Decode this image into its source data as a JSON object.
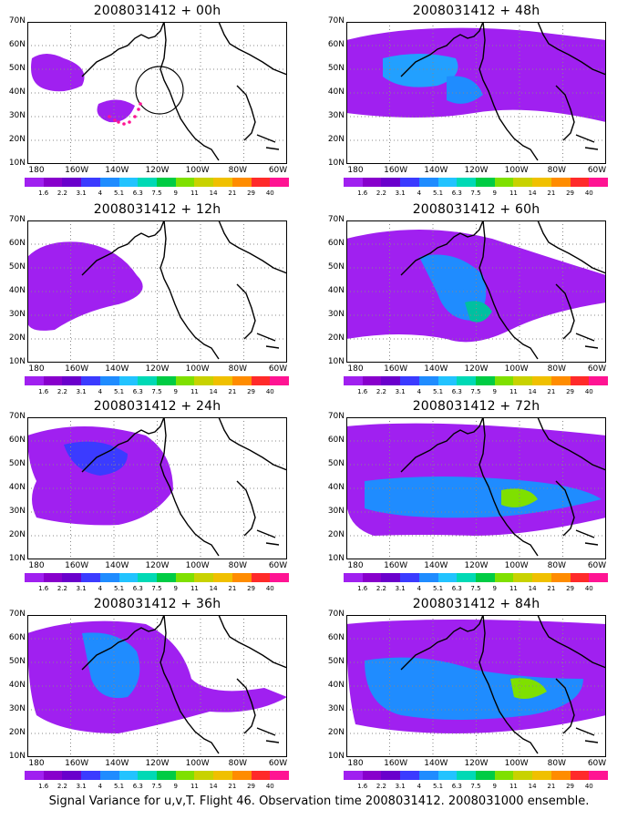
{
  "panels": [
    {
      "title": "2008031412 + 00h"
    },
    {
      "title": "2008031412 + 48h"
    },
    {
      "title": "2008031412 + 12h"
    },
    {
      "title": "2008031412 + 60h"
    },
    {
      "title": "2008031412 + 24h"
    },
    {
      "title": "2008031412 + 72h"
    },
    {
      "title": "2008031412 + 36h"
    },
    {
      "title": "2008031412 + 84h"
    }
  ],
  "y_ticks": [
    "70N",
    "60N",
    "50N",
    "40N",
    "30N",
    "20N",
    "10N"
  ],
  "x_ticks": [
    "180",
    "160W",
    "140W",
    "120W",
    "100W",
    "80W",
    "60W"
  ],
  "colorbar": {
    "labels": [
      "1.6",
      "2.2",
      "3.1",
      "4",
      "5.1",
      "6.3",
      "7.5",
      "9",
      "11",
      "14",
      "21",
      "29",
      "40"
    ],
    "colors": [
      "#a020f0",
      "#8800cc",
      "#6a00cc",
      "#3b3bff",
      "#1f8cff",
      "#22c3ff",
      "#00d9b5",
      "#00cc44",
      "#7fe000",
      "#c8d200",
      "#f0c000",
      "#ff8c00",
      "#ff2a2a",
      "#ff1493"
    ]
  },
  "footer": "Signal Variance for u,v,T. Flight 46. Observation time 2008031412. 2008031000 ensemble."
}
